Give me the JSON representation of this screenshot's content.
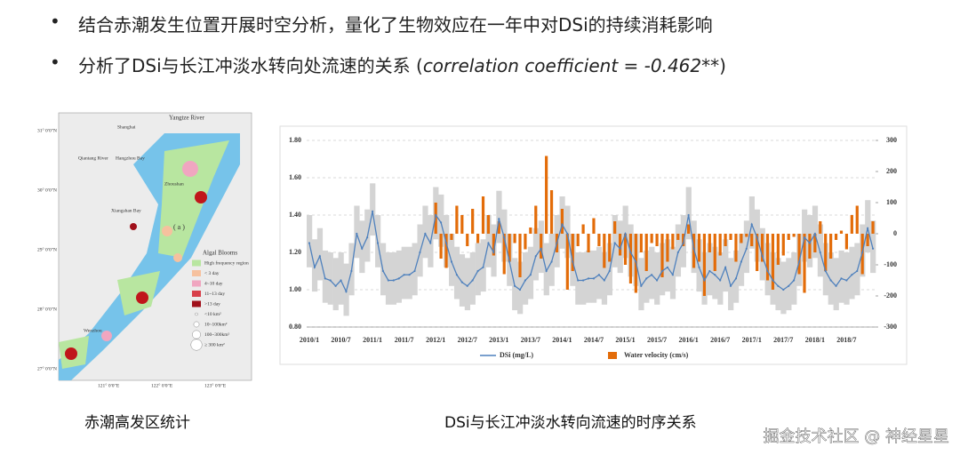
{
  "bullets": [
    {
      "text": "结合赤潮发生位置开展时空分析，量化了生物效应在一年中对DSi的持续消耗影响"
    },
    {
      "text": "分析了DSi与长江冲淡水转向处流速的关系 (",
      "italic": "correlation coefficient = -0.462**",
      "suffix": ")"
    }
  ],
  "map": {
    "river": "Yangtze River",
    "city1": "Shanghai",
    "river2": "Qiantang River",
    "bay1": "Hangzhou Bay",
    "island": "Zhoushan",
    "bay2": "Xiangshan Bay",
    "panel": "( a )",
    "city2": "Wenzhou",
    "legend_title": "Algal Blooms",
    "legend": [
      "High frequency region",
      "< 3 day",
      "4~10 day",
      "11~13 day",
      ">13 day",
      "<10 km²",
      "10~100km²",
      "100~300km²",
      "≥ 300 km²"
    ],
    "lat": [
      "31° 0′0″N",
      "30° 0′0″N",
      "29° 0′0″N",
      "28° 0′0″N",
      "27° 0′0″N"
    ],
    "lon": [
      "121° 0′0″E",
      "122° 0′0″E",
      "123° 0′0″E"
    ]
  },
  "captions": {
    "left": "赤潮高发区统计",
    "right": "DSi与长江冲淡水转向流速的时序关系"
  },
  "watermark": "掘金技术社区 @ 神经星星",
  "chart_data": {
    "type": "combo",
    "categories": [
      "2010/1",
      null,
      null,
      null,
      null,
      null,
      "2010/7",
      null,
      null,
      null,
      null,
      null,
      "2011/1",
      null,
      null,
      null,
      null,
      null,
      "2011/7",
      null,
      null,
      null,
      null,
      null,
      "2012/1",
      null,
      null,
      null,
      null,
      null,
      "2012/7",
      null,
      null,
      null,
      null,
      null,
      "2013/1",
      null,
      null,
      null,
      null,
      null,
      "2013/7",
      null,
      null,
      null,
      null,
      null,
      "2014/1",
      null,
      null,
      null,
      null,
      null,
      "2014/7",
      null,
      null,
      null,
      null,
      null,
      "2015/1",
      null,
      null,
      null,
      null,
      null,
      "2015/7",
      null,
      null,
      null,
      null,
      null,
      "2016/1",
      null,
      null,
      null,
      null,
      null,
      "2016/7",
      null,
      null,
      null,
      null,
      null,
      "2017/1",
      null,
      null,
      null,
      null,
      null,
      "2017/7",
      null,
      null,
      null,
      null,
      null,
      "2018/1",
      null,
      null,
      null,
      null,
      null,
      "2018/7",
      null,
      null,
      null,
      null,
      null
    ],
    "series": [
      {
        "name": "DSi (mg/L)",
        "type": "line",
        "color": "#4f81bd",
        "values": [
          1.25,
          1.12,
          1.18,
          1.06,
          1.05,
          1.02,
          1.05,
          0.99,
          1.1,
          1.3,
          1.22,
          1.28,
          1.42,
          1.25,
          1.1,
          1.05,
          1.05,
          1.06,
          1.08,
          1.08,
          1.1,
          1.2,
          1.3,
          1.25,
          1.4,
          1.36,
          1.25,
          1.15,
          1.08,
          1.04,
          1.02,
          1.05,
          1.1,
          1.12,
          1.25,
          1.2,
          1.38,
          1.28,
          1.15,
          1.02,
          1.0,
          1.05,
          1.08,
          1.18,
          1.22,
          1.1,
          1.15,
          1.25,
          1.35,
          1.3,
          1.15,
          1.05,
          1.05,
          1.06,
          1.06,
          1.08,
          1.05,
          1.1,
          1.25,
          1.22,
          1.3,
          1.2,
          1.15,
          1.02,
          1.06,
          1.08,
          1.05,
          1.1,
          1.12,
          1.08,
          1.2,
          1.25,
          1.4,
          1.22,
          1.12,
          1.05,
          1.1,
          1.08,
          1.05,
          1.12,
          1.02,
          1.06,
          1.15,
          1.22,
          1.35,
          1.28,
          1.18,
          1.1,
          1.05,
          1.02,
          1.0,
          1.02,
          1.05,
          1.15,
          1.28,
          1.25,
          1.3,
          1.2,
          1.1,
          1.05,
          1.02,
          1.06,
          1.05,
          1.08,
          1.1,
          1.2,
          1.33,
          1.22
        ]
      },
      {
        "name": "Water velocity (cm/s)",
        "type": "bar",
        "axis": "y2",
        "color": "#e36c09",
        "values": [
          null,
          null,
          null,
          null,
          null,
          null,
          null,
          null,
          null,
          null,
          null,
          null,
          null,
          null,
          null,
          null,
          null,
          null,
          null,
          null,
          null,
          null,
          null,
          null,
          100,
          -80,
          -110,
          -20,
          90,
          60,
          -40,
          80,
          -30,
          120,
          60,
          -70,
          40,
          -130,
          -90,
          -30,
          -140,
          -50,
          20,
          90,
          -80,
          250,
          140,
          -60,
          80,
          -180,
          -120,
          -40,
          30,
          -60,
          50,
          -40,
          -110,
          -90,
          40,
          -70,
          -100,
          -160,
          -190,
          -60,
          -120,
          -30,
          -40,
          -140,
          -90,
          -50,
          -20,
          -40,
          30,
          -110,
          -90,
          -200,
          -60,
          -120,
          -70,
          -40,
          -20,
          -90,
          -30,
          -10,
          -40,
          -120,
          -90,
          -150,
          -180,
          -100,
          -70,
          -20,
          -10,
          -130,
          -190,
          -80,
          -60,
          40,
          -120,
          -80,
          -20,
          10,
          -50,
          60,
          90,
          -130,
          -40,
          40
        ]
      }
    ],
    "band": {
      "color": "#d4d4d4",
      "upper": [
        1.4,
        1.27,
        1.33,
        1.21,
        1.2,
        1.17,
        1.2,
        1.14,
        1.25,
        1.45,
        1.37,
        1.43,
        1.57,
        1.4,
        1.25,
        1.2,
        1.2,
        1.21,
        1.23,
        1.23,
        1.25,
        1.35,
        1.45,
        1.4,
        1.55,
        1.51,
        1.4,
        1.3,
        1.23,
        1.19,
        1.17,
        1.2,
        1.25,
        1.27,
        1.4,
        1.35,
        1.53,
        1.43,
        1.3,
        1.17,
        1.15,
        1.2,
        1.23,
        1.33,
        1.37,
        1.25,
        1.3,
        1.4,
        1.5,
        1.45,
        1.3,
        1.2,
        1.2,
        1.21,
        1.21,
        1.23,
        1.2,
        1.25,
        1.4,
        1.37,
        1.45,
        1.35,
        1.3,
        1.17,
        1.21,
        1.23,
        1.2,
        1.25,
        1.27,
        1.23,
        1.35,
        1.4,
        1.55,
        1.37,
        1.27,
        1.2,
        1.25,
        1.23,
        1.2,
        1.27,
        1.17,
        1.21,
        1.3,
        1.37,
        1.5,
        1.43,
        1.33,
        1.25,
        1.2,
        1.17,
        1.15,
        1.17,
        1.2,
        1.3,
        1.43,
        1.4,
        1.45,
        1.35,
        1.25,
        1.2,
        1.17,
        1.21,
        1.2,
        1.23,
        1.25,
        1.35,
        1.48,
        1.37
      ],
      "lower": [
        1.12,
        0.99,
        1.05,
        0.93,
        0.92,
        0.89,
        0.92,
        0.86,
        0.97,
        1.17,
        1.09,
        1.15,
        1.29,
        1.12,
        0.97,
        0.92,
        0.92,
        0.93,
        0.95,
        0.95,
        0.97,
        1.07,
        1.17,
        1.12,
        1.27,
        1.23,
        1.12,
        1.02,
        0.95,
        0.91,
        0.89,
        0.92,
        0.97,
        0.99,
        1.12,
        1.07,
        1.25,
        1.15,
        1.02,
        0.89,
        0.87,
        0.92,
        0.95,
        1.05,
        1.09,
        0.97,
        1.02,
        1.12,
        1.22,
        1.17,
        1.02,
        0.92,
        0.92,
        0.93,
        0.93,
        0.95,
        0.92,
        0.97,
        1.12,
        1.09,
        1.17,
        1.07,
        1.02,
        0.89,
        0.93,
        0.95,
        0.92,
        0.97,
        0.99,
        0.95,
        1.07,
        1.12,
        1.27,
        1.09,
        0.99,
        0.92,
        0.97,
        0.95,
        0.92,
        0.99,
        0.89,
        0.93,
        1.02,
        1.09,
        1.22,
        1.15,
        1.05,
        0.97,
        0.92,
        0.89,
        0.87,
        0.89,
        0.92,
        1.02,
        1.15,
        1.12,
        1.17,
        1.07,
        0.97,
        0.92,
        0.89,
        0.93,
        0.92,
        0.95,
        0.97,
        1.07,
        1.2,
        1.09
      ]
    },
    "ylim": [
      0.8,
      1.8
    ],
    "yticks": [
      {
        "value": 0.8,
        "label": "0.80"
      },
      {
        "value": 1.0,
        "label": "1.00"
      },
      {
        "value": 1.2,
        "label": "1.20"
      },
      {
        "value": 1.4,
        "label": "1.40"
      },
      {
        "value": 1.6,
        "label": "1.60"
      },
      {
        "value": 1.8,
        "label": "1.80"
      }
    ],
    "y2lim": [
      -300,
      300
    ],
    "y2ticks": [
      -300,
      -200,
      -100,
      0,
      100,
      200,
      300
    ],
    "grid": true
  }
}
